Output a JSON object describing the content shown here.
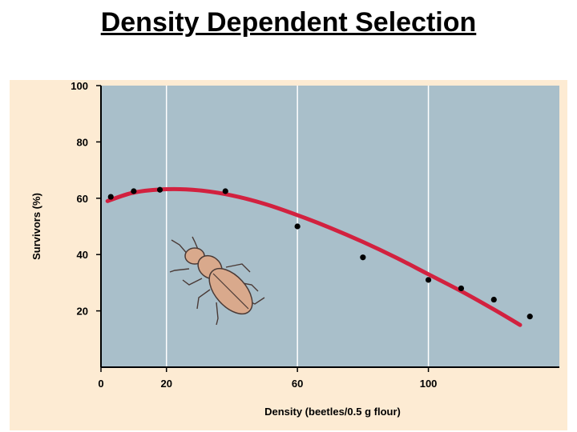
{
  "slide": {
    "title": "Density Dependent Selection"
  },
  "colors": {
    "figure_background": "#fdebd3",
    "plot_background": "#a9bfca",
    "grid": "#ffffff",
    "curve": "#d2213f",
    "points": "#000000",
    "beetle_body": "#d9a98c"
  },
  "chart_data": {
    "type": "scatter",
    "title": "",
    "xlabel": "Density (beetles/0.5 g flour)",
    "ylabel": "Survivors (%)",
    "xlim": [
      0,
      140
    ],
    "ylim": [
      0,
      100
    ],
    "xticks": [
      0,
      20,
      60,
      100
    ],
    "yticks": [
      20,
      40,
      60,
      80,
      100
    ],
    "grid": true,
    "series": [
      {
        "kind": "points",
        "x": [
          3,
          10,
          18,
          38,
          60,
          80,
          100,
          110,
          120,
          131
        ],
        "y": [
          60.5,
          62.5,
          63,
          62.5,
          50,
          39,
          31,
          28,
          24,
          18
        ]
      },
      {
        "kind": "fitted-curve",
        "x": [
          2,
          10,
          20,
          30,
          40,
          50,
          60,
          70,
          80,
          90,
          100,
          110,
          120,
          128
        ],
        "y": [
          59,
          62,
          63.2,
          62.8,
          61,
          58,
          54,
          49.5,
          44.5,
          39,
          33,
          27,
          20.5,
          15
        ]
      }
    ],
    "illustration": "flour-beetle"
  }
}
